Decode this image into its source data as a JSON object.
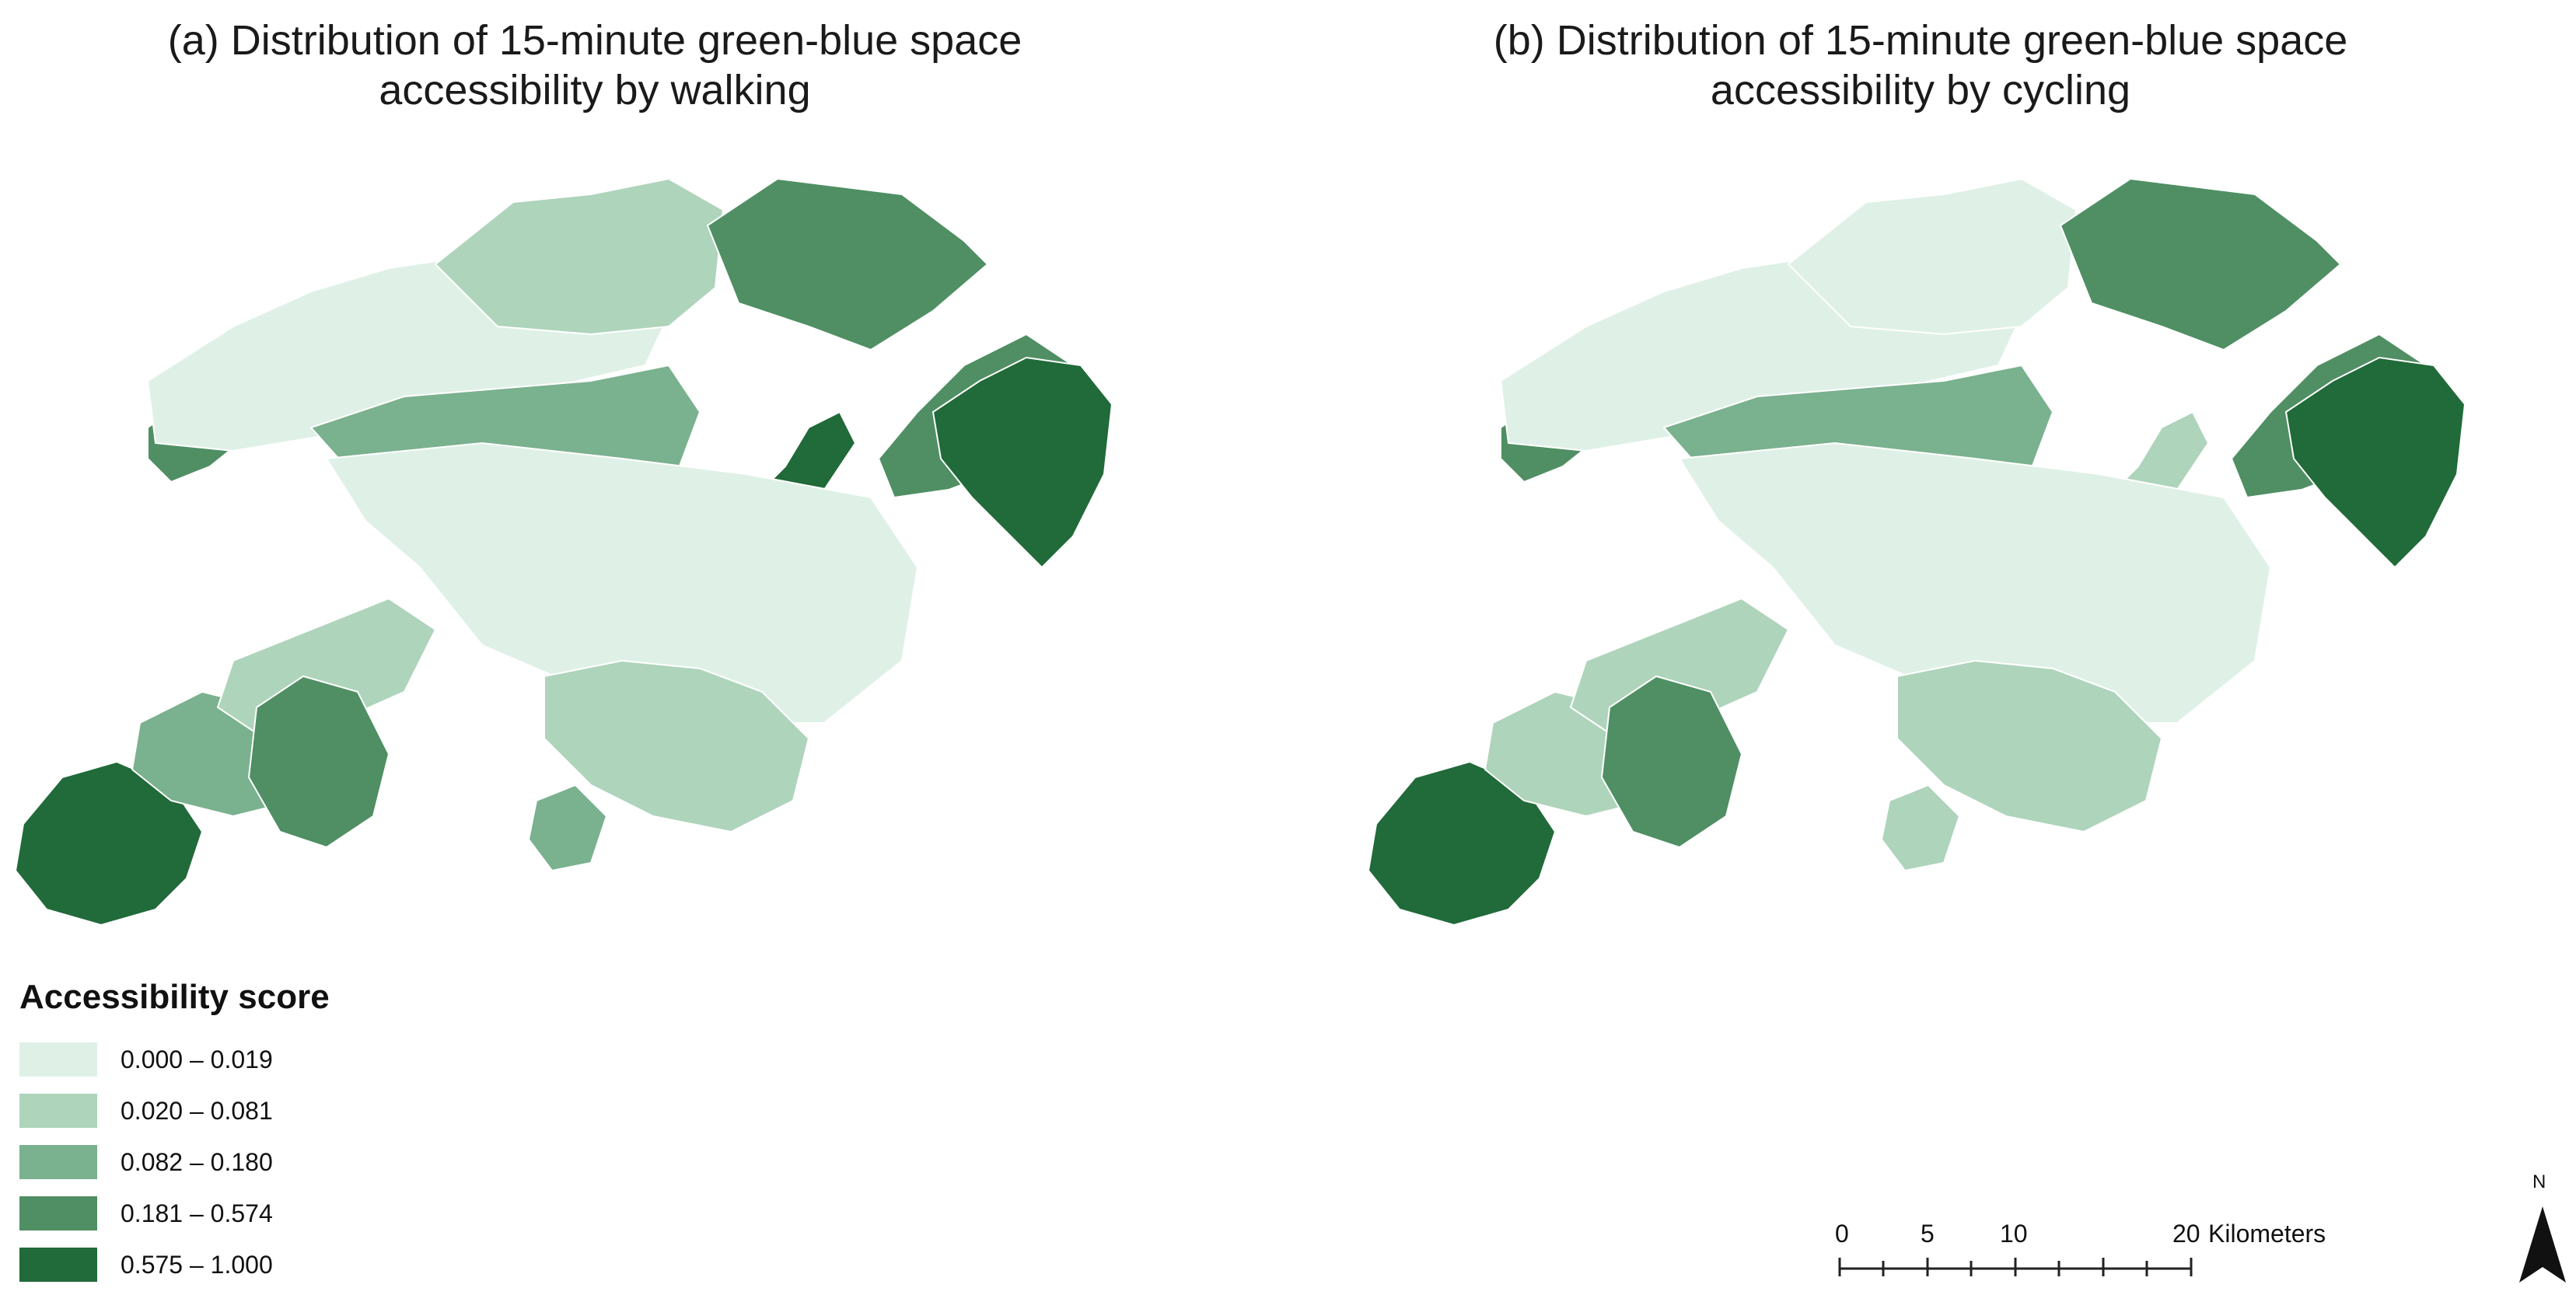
{
  "titles": {
    "a": "(a) Distribution of 15-minute green-blue space\naccessibility by walking",
    "b": "(b) Distribution of 15-minute green-blue space\naccessibility by cycling"
  },
  "legend": {
    "title": "Accessibility score",
    "classes": [
      {
        "label": "0.000 – 0.019",
        "color": "#dff1e7"
      },
      {
        "label": "0.020 – 0.081",
        "color": "#aed4bb"
      },
      {
        "label": "0.082 – 0.180",
        "color": "#7ab18e"
      },
      {
        "label": "0.181 – 0.574",
        "color": "#4f8f63"
      },
      {
        "label": "0.575 – 1.000",
        "color": "#216a39"
      }
    ]
  },
  "scale_bar": {
    "labels": [
      "0",
      "5",
      "10",
      "20"
    ],
    "unit": "Kilometers"
  },
  "north_arrow": {
    "label": "N"
  },
  "maps": {
    "walking": [
      {
        "region": "west-lantau",
        "class": 4
      },
      {
        "region": "lantau-central",
        "class": 2
      },
      {
        "region": "lantau-north",
        "class": 1
      },
      {
        "region": "lantau-east",
        "class": 3
      },
      {
        "region": "tuen-mun",
        "class": 3
      },
      {
        "region": "yuen-long",
        "class": 0
      },
      {
        "region": "north-district",
        "class": 1
      },
      {
        "region": "plover-cove",
        "class": 3
      },
      {
        "region": "central-nt",
        "class": 2
      },
      {
        "region": "tolo-ridge",
        "class": 4
      },
      {
        "region": "sai-kung-west",
        "class": 3
      },
      {
        "region": "sai-kung-east",
        "class": 4
      },
      {
        "region": "urban-kowloon",
        "class": 0
      },
      {
        "region": "hk-island",
        "class": 1
      },
      {
        "region": "lamma",
        "class": 2
      }
    ],
    "cycling": [
      {
        "region": "west-lantau",
        "class": 4
      },
      {
        "region": "lantau-central",
        "class": 1
      },
      {
        "region": "lantau-north",
        "class": 1
      },
      {
        "region": "lantau-east",
        "class": 3
      },
      {
        "region": "tuen-mun",
        "class": 3
      },
      {
        "region": "yuen-long",
        "class": 0
      },
      {
        "region": "north-district",
        "class": 0
      },
      {
        "region": "plover-cove",
        "class": 3
      },
      {
        "region": "central-nt",
        "class": 2
      },
      {
        "region": "tolo-ridge",
        "class": 1
      },
      {
        "region": "sai-kung-west",
        "class": 3
      },
      {
        "region": "sai-kung-east",
        "class": 4
      },
      {
        "region": "urban-kowloon",
        "class": 0
      },
      {
        "region": "hk-island",
        "class": 1
      },
      {
        "region": "lamma",
        "class": 1
      }
    ]
  }
}
